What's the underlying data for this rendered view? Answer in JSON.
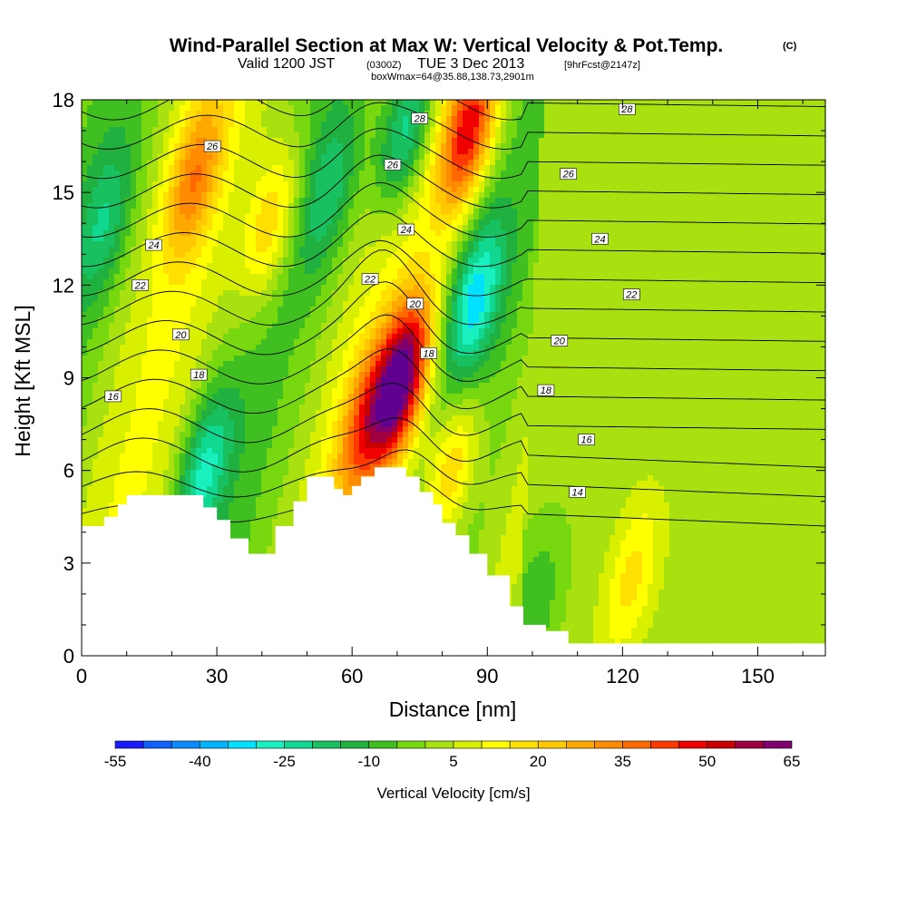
{
  "header": {
    "title": "Wind-Parallel Section at Max W: Vertical Velocity & Pot.Temp.",
    "title_tag": "(C)",
    "subtitle_a": "Valid 1200 JST",
    "subtitle_b": "(0300Z)",
    "subtitle_c": "TUE 3 Dec 2013",
    "subtitle_d": "[9hrFcst@2147z]",
    "box_line": "boxWmax=64@35.88,138.73,2901m"
  },
  "chart_data": {
    "type": "heatmap",
    "title": "Wind-Parallel Section at Max W: Vertical Velocity & Pot.Temp. (C)",
    "xlabel": "Distance [nm]",
    "ylabel": "Height [Kft MSL]",
    "xlim": [
      0,
      165
    ],
    "ylim": [
      0,
      18
    ],
    "x_ticks": [
      "0",
      "30",
      "60",
      "90",
      "120",
      "150"
    ],
    "y_ticks": [
      "0",
      "3",
      "6",
      "9",
      "12",
      "15",
      "18"
    ],
    "grid": false,
    "colorbar": {
      "label": "Vertical Velocity [cm/s]",
      "tick_labels": [
        "-55",
        "-40",
        "-25",
        "-10",
        "5",
        "20",
        "35",
        "50",
        "65"
      ],
      "levels": [
        -55,
        -50,
        -45,
        -40,
        -35,
        -30,
        -25,
        -20,
        -15,
        -10,
        -5,
        0,
        5,
        10,
        15,
        20,
        25,
        30,
        35,
        40,
        45,
        50,
        55,
        60,
        65
      ],
      "colors": [
        "#1a1aff",
        "#1060ff",
        "#0a8cff",
        "#00b4ff",
        "#00e0ff",
        "#18f0c0",
        "#10d890",
        "#18c060",
        "#20b040",
        "#40c020",
        "#78d810",
        "#a8e010",
        "#d8f000",
        "#ffff00",
        "#ffe000",
        "#ffc800",
        "#ffa800",
        "#ff8c00",
        "#ff6a00",
        "#ff3a00",
        "#f00000",
        "#c80000",
        "#a00040",
        "#800070",
        "#600090"
      ]
    },
    "terrain_profile": {
      "distance": [
        0,
        3,
        5,
        8,
        10,
        20,
        27,
        30,
        33,
        37,
        40,
        43,
        47,
        50,
        53,
        56,
        58,
        60,
        62,
        65,
        68,
        70,
        72,
        75,
        78,
        80,
        83,
        86,
        90,
        95,
        98,
        103,
        108,
        165
      ],
      "height": [
        4.2,
        4.2,
        4.5,
        4.9,
        5.2,
        5.2,
        4.8,
        4.4,
        3.8,
        3.3,
        3.3,
        4.2,
        5.0,
        5.8,
        5.8,
        5.4,
        5.2,
        5.5,
        5.8,
        6.1,
        6.1,
        6.1,
        5.8,
        5.3,
        4.9,
        4.3,
        3.9,
        3.3,
        2.6,
        1.6,
        1.0,
        0.8,
        0.4,
        0.3
      ]
    },
    "updraft_cores": [
      {
        "distance": 71,
        "height": 8.9,
        "w": 62
      },
      {
        "distance": 86,
        "height": 17.0,
        "w": 45
      },
      {
        "distance": 63,
        "height": 7.5,
        "w": 30
      },
      {
        "distance": 25,
        "height": 15.5,
        "w": 25
      },
      {
        "distance": 42,
        "height": 14.0,
        "w": 22
      },
      {
        "distance": 82,
        "height": 6.0,
        "w": 25
      },
      {
        "distance": 122,
        "height": 2.5,
        "w": 15
      }
    ],
    "downdraft_cores": [
      {
        "distance": 72,
        "height": 17.0,
        "w": -30
      },
      {
        "distance": 87,
        "height": 11.5,
        "w": -28
      },
      {
        "distance": 27,
        "height": 6.0,
        "w": -25
      },
      {
        "distance": 5,
        "height": 14.0,
        "w": -15
      },
      {
        "distance": 55,
        "height": 15.0,
        "w": -15
      },
      {
        "distance": 100,
        "height": 1.5,
        "w": -12
      }
    ],
    "theta_contours": {
      "units": "C",
      "levels": [
        14,
        15,
        16,
        17,
        18,
        19,
        20,
        21,
        22,
        23,
        24,
        25,
        26,
        27,
        28
      ],
      "labels": [
        {
          "text": "28",
          "distance": 75,
          "height": 17.4
        },
        {
          "text": "28",
          "distance": 121,
          "height": 17.7
        },
        {
          "text": "26",
          "distance": 29,
          "height": 16.5
        },
        {
          "text": "26",
          "distance": 69,
          "height": 15.9
        },
        {
          "text": "26",
          "distance": 108,
          "height": 15.6
        },
        {
          "text": "24",
          "distance": 16,
          "height": 13.3
        },
        {
          "text": "24",
          "distance": 72,
          "height": 13.8
        },
        {
          "text": "24",
          "distance": 115,
          "height": 13.5
        },
        {
          "text": "22",
          "distance": 13,
          "height": 12.0
        },
        {
          "text": "22",
          "distance": 64,
          "height": 12.2
        },
        {
          "text": "22",
          "distance": 122,
          "height": 11.7
        },
        {
          "text": "20",
          "distance": 22,
          "height": 10.4
        },
        {
          "text": "20",
          "distance": 74,
          "height": 11.4
        },
        {
          "text": "20",
          "distance": 106,
          "height": 10.2
        },
        {
          "text": "18",
          "distance": 26,
          "height": 9.1
        },
        {
          "text": "18",
          "distance": 77,
          "height": 9.8
        },
        {
          "text": "18",
          "distance": 103,
          "height": 8.6
        },
        {
          "text": "16",
          "distance": 7,
          "height": 8.4
        },
        {
          "text": "16",
          "distance": 112,
          "height": 7.0
        },
        {
          "text": "14",
          "distance": 110,
          "height": 5.3
        }
      ]
    }
  }
}
